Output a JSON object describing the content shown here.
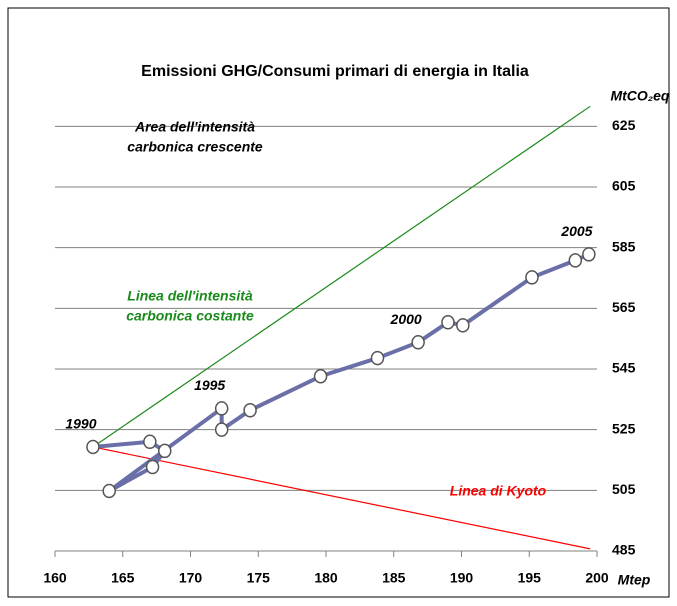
{
  "chart_data": {
    "type": "line",
    "title": "Emissioni GHG/Consumi primari di energia in Italia",
    "x_label": "Mtep",
    "y_label": "MtCO₂eq",
    "xlim": [
      160,
      200
    ],
    "xticks": [
      160,
      165,
      170,
      175,
      180,
      185,
      190,
      195,
      200
    ],
    "ylim": [
      485,
      635
    ],
    "yticks": [
      485,
      505,
      525,
      545,
      565,
      585,
      605,
      625
    ],
    "grid": true,
    "series": [
      {
        "color": "#6b6fa8",
        "x": [
          162.8,
          167.0,
          168.1,
          167.2,
          164.0,
          172.3,
          172.3,
          174.4,
          179.6,
          183.8,
          186.8,
          189.0,
          190.1,
          195.2,
          198.4,
          199.4
        ],
        "values": [
          519.3,
          521.0,
          518.0,
          512.7,
          504.8,
          532.0,
          525.0,
          531.4,
          542.6,
          548.6,
          553.8,
          560.4,
          559.4,
          575.2,
          580.8,
          582.8
        ],
        "point_labels": [
          "1990",
          null,
          null,
          null,
          null,
          "1995",
          null,
          null,
          null,
          null,
          "2000",
          null,
          null,
          null,
          null,
          "2005"
        ]
      },
      {
        "name_lines": [
          "Linea dell'intensità",
          "carbonica costante"
        ],
        "color": "#1a8a1a",
        "x": [
          162.8,
          199.5
        ],
        "values": [
          519.3,
          631.6
        ]
      },
      {
        "name_lines": [
          "Linea di Kyoto"
        ],
        "color": "#ff0000",
        "x": [
          162.8,
          199.5
        ],
        "values": [
          519.3,
          485.7
        ]
      }
    ],
    "annotation_lines": [
      "Area dell'intensità",
      "carbonica crescente"
    ]
  }
}
